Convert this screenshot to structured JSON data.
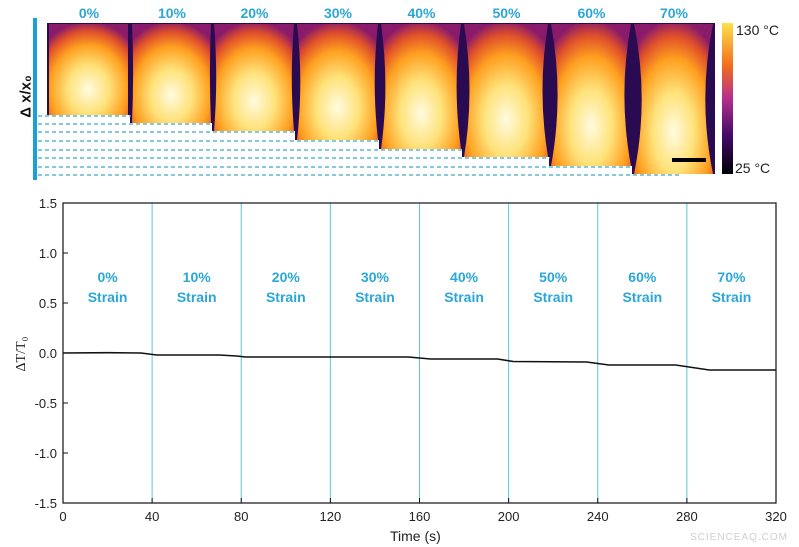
{
  "images_panel": {
    "axis_label": "Δ x/x₀",
    "strain_labels": [
      "0%",
      "10%",
      "20%",
      "30%",
      "40%",
      "50%",
      "60%",
      "70%"
    ],
    "colorbar": {
      "max_label": "130 °C",
      "min_label": "25 °C",
      "colormap": "inferno"
    },
    "colors": {
      "label": "#2aa7d6",
      "axis_bar": "#1aa0d8"
    }
  },
  "chart_data": {
    "type": "line",
    "xlabel": "Time (s)",
    "ylabel": "ΔT/T₀",
    "xlim": [
      0,
      320
    ],
    "ylim": [
      -1.5,
      1.5
    ],
    "xticks": [
      0,
      40,
      80,
      120,
      160,
      200,
      240,
      280,
      320
    ],
    "yticks": [
      1.5,
      1.0,
      0.5,
      0.0,
      -0.5,
      -1.0,
      -1.5
    ],
    "ytick_labels": [
      "1.5",
      "1.0",
      "0.5",
      "0.0",
      "-0.5",
      "-1.0",
      "-1.5"
    ],
    "grid": false,
    "dividers_x": [
      40,
      80,
      120,
      160,
      200,
      240,
      280
    ],
    "regions": [
      {
        "pct": "0%",
        "word": "Strain"
      },
      {
        "pct": "10%",
        "word": "Strain"
      },
      {
        "pct": "20%",
        "word": "Strain"
      },
      {
        "pct": "30%",
        "word": "Strain"
      },
      {
        "pct": "40%",
        "word": "Strain"
      },
      {
        "pct": "50%",
        "word": "Strain"
      },
      {
        "pct": "60%",
        "word": "Strain"
      },
      {
        "pct": "70%",
        "word": "Strain"
      }
    ],
    "x": [
      0,
      20,
      35,
      42,
      70,
      78,
      82,
      155,
      165,
      195,
      202,
      235,
      245,
      275,
      290,
      320
    ],
    "y": [
      0,
      0.003,
      0,
      -0.02,
      -0.02,
      -0.03,
      -0.04,
      -0.04,
      -0.06,
      -0.06,
      -0.085,
      -0.09,
      -0.12,
      -0.12,
      -0.17,
      -0.17
    ],
    "colors": {
      "line": "#111111",
      "divider": "#5cc6df",
      "label": "#2aa7d6"
    }
  },
  "watermark": "SCIENCEAQ.COM"
}
